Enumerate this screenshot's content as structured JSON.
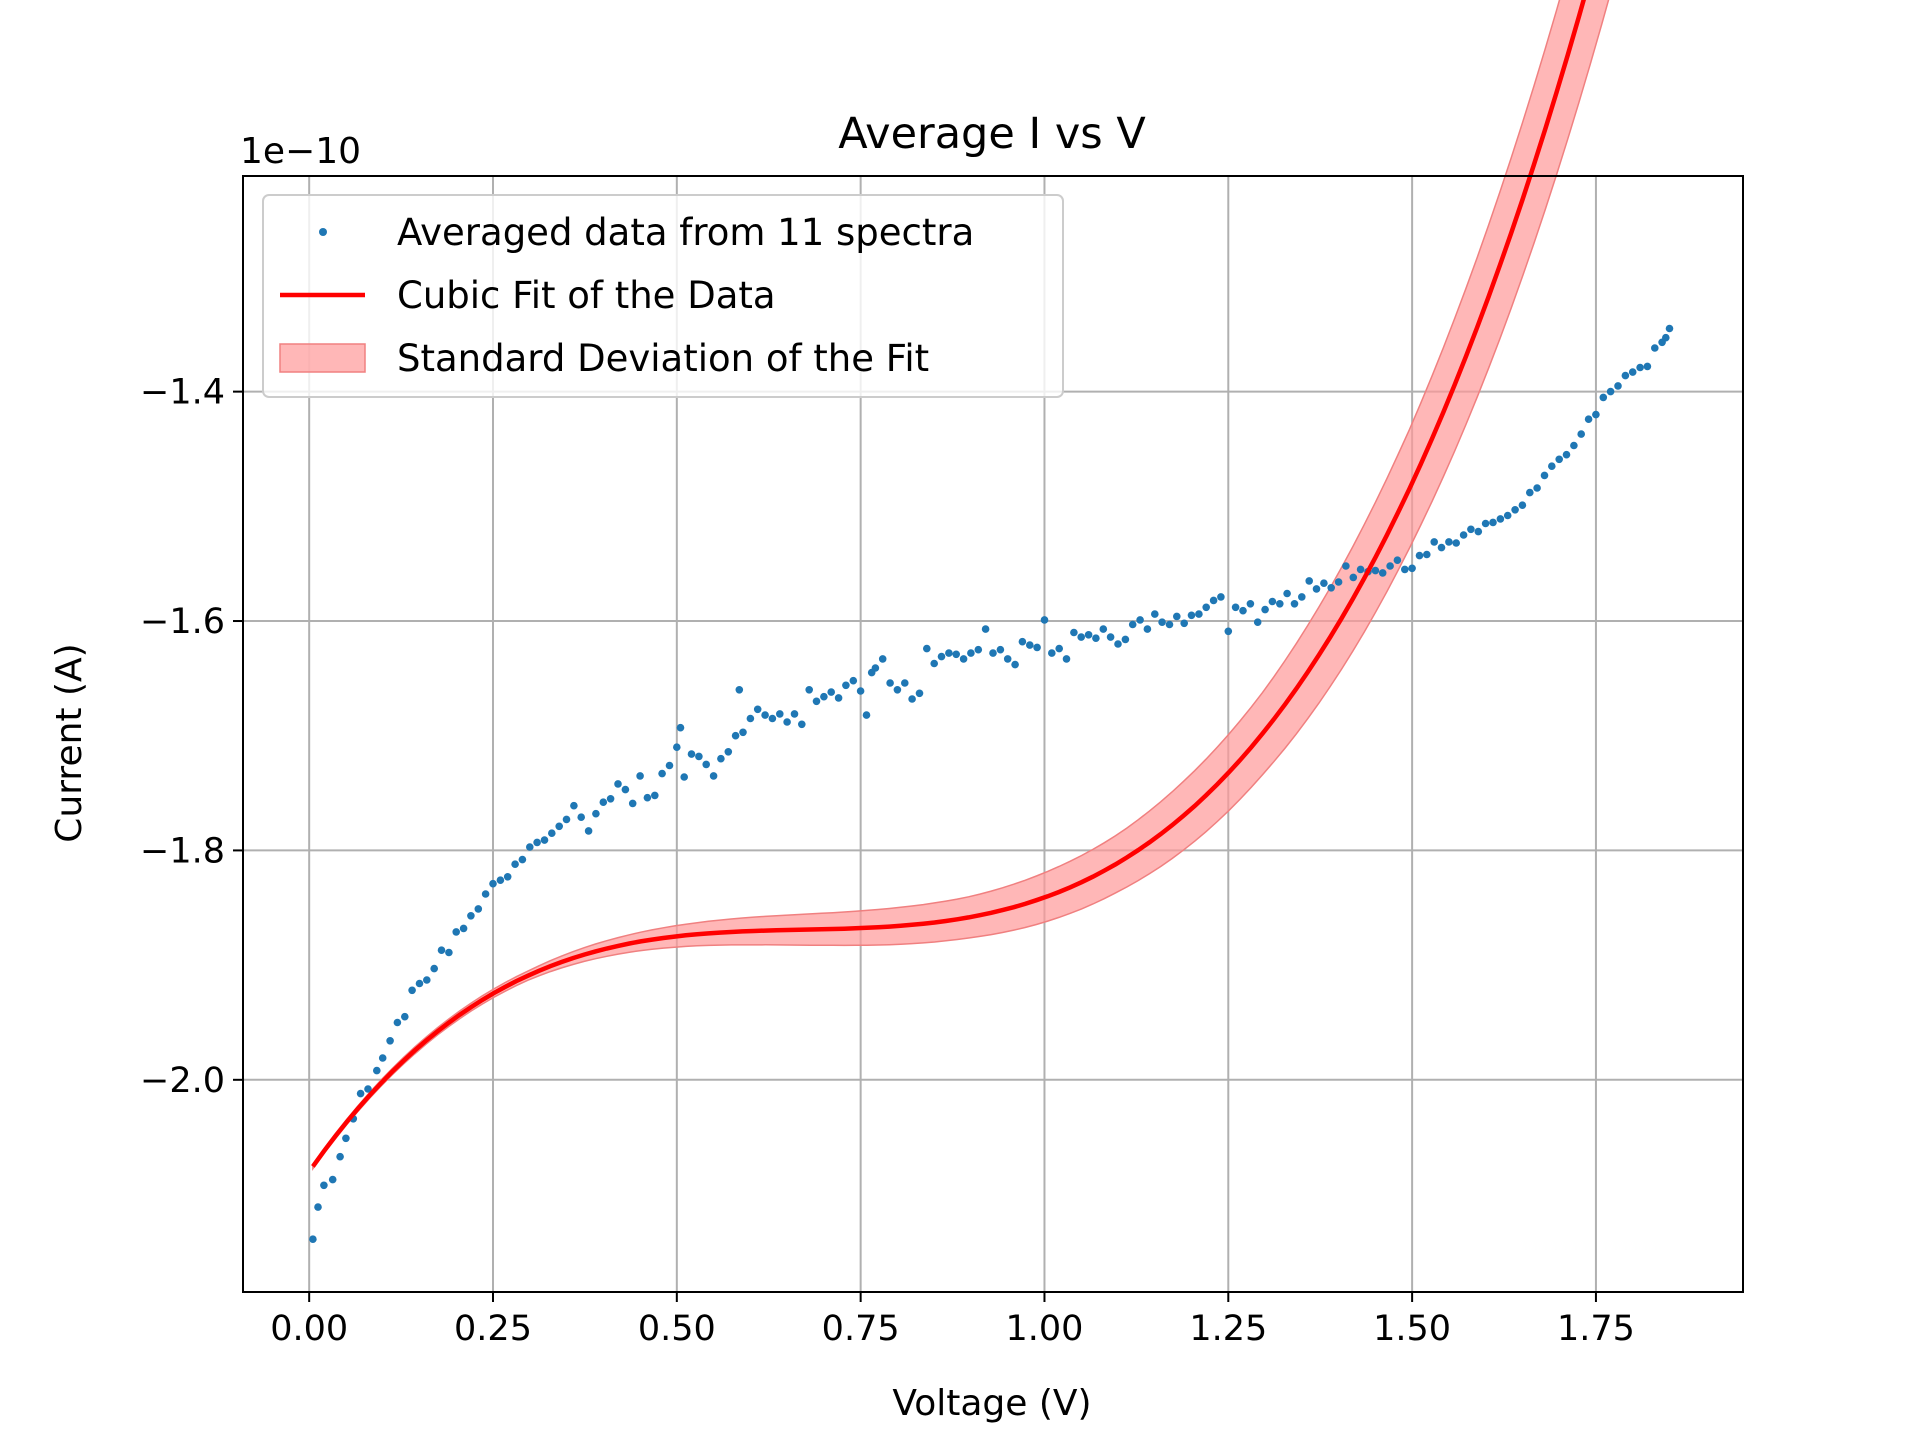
{
  "chart_data": {
    "type": "scatter",
    "title": "Average I vs V",
    "xlabel": "Voltage (V)",
    "ylabel": "Current (A)",
    "y_offset_label": "1e−10",
    "xlim": [
      -0.09,
      1.95
    ],
    "ylim": [
      -2.185,
      -1.212
    ],
    "grid": true,
    "legend_position": "upper left",
    "x_ticks": [
      0.0,
      0.25,
      0.5,
      0.75,
      1.0,
      1.25,
      1.5,
      1.75
    ],
    "x_tick_labels": [
      "0.00",
      "0.25",
      "0.50",
      "0.75",
      "1.00",
      "1.25",
      "1.50",
      "1.75"
    ],
    "y_ticks": [
      -2.0,
      -1.8,
      -1.6,
      -1.4
    ],
    "y_tick_labels": [
      "−2.0",
      "−1.8",
      "−1.6",
      "−1.4"
    ],
    "colors": {
      "scatter": "#1f77b4",
      "fit": "#ff0000",
      "band": "#ff9999",
      "band_edge": "#f08080"
    },
    "legend": [
      {
        "label": "Averaged data from 11 spectra",
        "kind": "scatter"
      },
      {
        "label": "Cubic Fit of the Data",
        "kind": "line"
      },
      {
        "label": "Standard Deviation of the Fit",
        "kind": "band"
      }
    ],
    "series": [
      {
        "name": "Averaged data from 11 spectra",
        "type": "scatter",
        "points": [
          [
            0.005,
            -2.139
          ],
          [
            0.012,
            -2.111
          ],
          [
            0.02,
            -2.092
          ],
          [
            0.032,
            -2.087
          ],
          [
            0.042,
            -2.067
          ],
          [
            0.05,
            -2.051
          ],
          [
            0.06,
            -2.034
          ],
          [
            0.07,
            -2.012
          ],
          [
            0.08,
            -2.008
          ],
          [
            0.092,
            -1.992
          ],
          [
            0.1,
            -1.981
          ],
          [
            0.11,
            -1.966
          ],
          [
            0.12,
            -1.95
          ],
          [
            0.13,
            -1.945
          ],
          [
            0.14,
            -1.922
          ],
          [
            0.15,
            -1.916
          ],
          [
            0.16,
            -1.913
          ],
          [
            0.17,
            -1.903
          ],
          [
            0.18,
            -1.887
          ],
          [
            0.19,
            -1.889
          ],
          [
            0.2,
            -1.871
          ],
          [
            0.21,
            -1.868
          ],
          [
            0.22,
            -1.857
          ],
          [
            0.23,
            -1.851
          ],
          [
            0.24,
            -1.838
          ],
          [
            0.25,
            -1.829
          ],
          [
            0.26,
            -1.826
          ],
          [
            0.27,
            -1.823
          ],
          [
            0.28,
            -1.812
          ],
          [
            0.29,
            -1.808
          ],
          [
            0.3,
            -1.797
          ],
          [
            0.31,
            -1.793
          ],
          [
            0.32,
            -1.791
          ],
          [
            0.33,
            -1.785
          ],
          [
            0.34,
            -1.779
          ],
          [
            0.35,
            -1.773
          ],
          [
            0.36,
            -1.761
          ],
          [
            0.37,
            -1.771
          ],
          [
            0.38,
            -1.783
          ],
          [
            0.39,
            -1.768
          ],
          [
            0.4,
            -1.758
          ],
          [
            0.41,
            -1.755
          ],
          [
            0.42,
            -1.742
          ],
          [
            0.43,
            -1.747
          ],
          [
            0.44,
            -1.759
          ],
          [
            0.45,
            -1.735
          ],
          [
            0.46,
            -1.754
          ],
          [
            0.47,
            -1.752
          ],
          [
            0.48,
            -1.733
          ],
          [
            0.49,
            -1.726
          ],
          [
            0.5,
            -1.71
          ],
          [
            0.505,
            -1.693
          ],
          [
            0.51,
            -1.736
          ],
          [
            0.52,
            -1.716
          ],
          [
            0.53,
            -1.718
          ],
          [
            0.54,
            -1.725
          ],
          [
            0.55,
            -1.735
          ],
          [
            0.56,
            -1.72
          ],
          [
            0.57,
            -1.714
          ],
          [
            0.58,
            -1.7
          ],
          [
            0.585,
            -1.66
          ],
          [
            0.59,
            -1.697
          ],
          [
            0.6,
            -1.685
          ],
          [
            0.61,
            -1.677
          ],
          [
            0.62,
            -1.682
          ],
          [
            0.63,
            -1.685
          ],
          [
            0.64,
            -1.681
          ],
          [
            0.65,
            -1.688
          ],
          [
            0.66,
            -1.681
          ],
          [
            0.67,
            -1.69
          ],
          [
            0.68,
            -1.66
          ],
          [
            0.69,
            -1.67
          ],
          [
            0.7,
            -1.666
          ],
          [
            0.71,
            -1.662
          ],
          [
            0.72,
            -1.667
          ],
          [
            0.73,
            -1.656
          ],
          [
            0.74,
            -1.652
          ],
          [
            0.75,
            -1.661
          ],
          [
            0.758,
            -1.682
          ],
          [
            0.765,
            -1.645
          ],
          [
            0.77,
            -1.641
          ],
          [
            0.78,
            -1.633
          ],
          [
            0.79,
            -1.654
          ],
          [
            0.8,
            -1.66
          ],
          [
            0.81,
            -1.654
          ],
          [
            0.82,
            -1.668
          ],
          [
            0.83,
            -1.663
          ],
          [
            0.84,
            -1.624
          ],
          [
            0.85,
            -1.637
          ],
          [
            0.86,
            -1.631
          ],
          [
            0.87,
            -1.628
          ],
          [
            0.88,
            -1.629
          ],
          [
            0.89,
            -1.633
          ],
          [
            0.9,
            -1.628
          ],
          [
            0.91,
            -1.625
          ],
          [
            0.92,
            -1.607
          ],
          [
            0.93,
            -1.628
          ],
          [
            0.94,
            -1.625
          ],
          [
            0.95,
            -1.633
          ],
          [
            0.96,
            -1.638
          ],
          [
            0.97,
            -1.618
          ],
          [
            0.98,
            -1.621
          ],
          [
            0.99,
            -1.623
          ],
          [
            1.0,
            -1.599
          ],
          [
            1.01,
            -1.628
          ],
          [
            1.02,
            -1.624
          ],
          [
            1.03,
            -1.633
          ],
          [
            1.04,
            -1.61
          ],
          [
            1.05,
            -1.614
          ],
          [
            1.06,
            -1.612
          ],
          [
            1.07,
            -1.615
          ],
          [
            1.08,
            -1.607
          ],
          [
            1.09,
            -1.614
          ],
          [
            1.1,
            -1.62
          ],
          [
            1.11,
            -1.616
          ],
          [
            1.12,
            -1.603
          ],
          [
            1.13,
            -1.599
          ],
          [
            1.14,
            -1.607
          ],
          [
            1.15,
            -1.594
          ],
          [
            1.16,
            -1.601
          ],
          [
            1.17,
            -1.603
          ],
          [
            1.18,
            -1.596
          ],
          [
            1.19,
            -1.602
          ],
          [
            1.2,
            -1.595
          ],
          [
            1.21,
            -1.594
          ],
          [
            1.22,
            -1.588
          ],
          [
            1.23,
            -1.582
          ],
          [
            1.24,
            -1.579
          ],
          [
            1.25,
            -1.609
          ],
          [
            1.26,
            -1.588
          ],
          [
            1.27,
            -1.591
          ],
          [
            1.28,
            -1.585
          ],
          [
            1.29,
            -1.601
          ],
          [
            1.3,
            -1.59
          ],
          [
            1.31,
            -1.583
          ],
          [
            1.32,
            -1.585
          ],
          [
            1.33,
            -1.576
          ],
          [
            1.34,
            -1.585
          ],
          [
            1.35,
            -1.579
          ],
          [
            1.36,
            -1.565
          ],
          [
            1.37,
            -1.572
          ],
          [
            1.38,
            -1.567
          ],
          [
            1.39,
            -1.571
          ],
          [
            1.4,
            -1.566
          ],
          [
            1.41,
            -1.552
          ],
          [
            1.42,
            -1.562
          ],
          [
            1.43,
            -1.555
          ],
          [
            1.44,
            -1.557
          ],
          [
            1.45,
            -1.556
          ],
          [
            1.46,
            -1.558
          ],
          [
            1.47,
            -1.552
          ],
          [
            1.48,
            -1.547
          ],
          [
            1.49,
            -1.555
          ],
          [
            1.5,
            -1.554
          ],
          [
            1.51,
            -1.543
          ],
          [
            1.52,
            -1.542
          ],
          [
            1.53,
            -1.531
          ],
          [
            1.54,
            -1.536
          ],
          [
            1.55,
            -1.531
          ],
          [
            1.56,
            -1.532
          ],
          [
            1.57,
            -1.525
          ],
          [
            1.58,
            -1.52
          ],
          [
            1.59,
            -1.522
          ],
          [
            1.6,
            -1.515
          ],
          [
            1.61,
            -1.514
          ],
          [
            1.62,
            -1.511
          ],
          [
            1.63,
            -1.508
          ],
          [
            1.64,
            -1.503
          ],
          [
            1.65,
            -1.499
          ],
          [
            1.66,
            -1.488
          ],
          [
            1.67,
            -1.484
          ],
          [
            1.68,
            -1.473
          ],
          [
            1.69,
            -1.465
          ],
          [
            1.7,
            -1.459
          ],
          [
            1.71,
            -1.455
          ],
          [
            1.72,
            -1.447
          ],
          [
            1.73,
            -1.437
          ],
          [
            1.74,
            -1.424
          ],
          [
            1.75,
            -1.42
          ],
          [
            1.76,
            -1.405
          ],
          [
            1.77,
            -1.4
          ],
          [
            1.78,
            -1.395
          ],
          [
            1.79,
            -1.386
          ],
          [
            1.8,
            -1.383
          ],
          [
            1.81,
            -1.379
          ],
          [
            1.82,
            -1.378
          ],
          [
            1.83,
            -1.362
          ],
          [
            1.84,
            -1.357
          ],
          [
            1.845,
            -1.353
          ],
          [
            1.85,
            -1.345
          ]
        ]
      },
      {
        "name": "Cubic Fit of the Data",
        "type": "line",
        "x_range": [
          0.005,
          1.85
        ],
        "coefficients": [
          -2.08,
          0.914,
          -1.34,
          0.665
        ]
      },
      {
        "name": "Standard Deviation of the Fit",
        "type": "band",
        "x_range": [
          0.005,
          1.85
        ],
        "band": {
          "x": [
            0.005,
            0.3,
            0.6,
            0.9,
            1.1,
            1.3,
            1.5,
            1.7,
            1.85
          ],
          "half_width": [
            0.002,
            0.004,
            0.012,
            0.018,
            0.025,
            0.036,
            0.052,
            0.072,
            0.088
          ]
        }
      }
    ]
  }
}
